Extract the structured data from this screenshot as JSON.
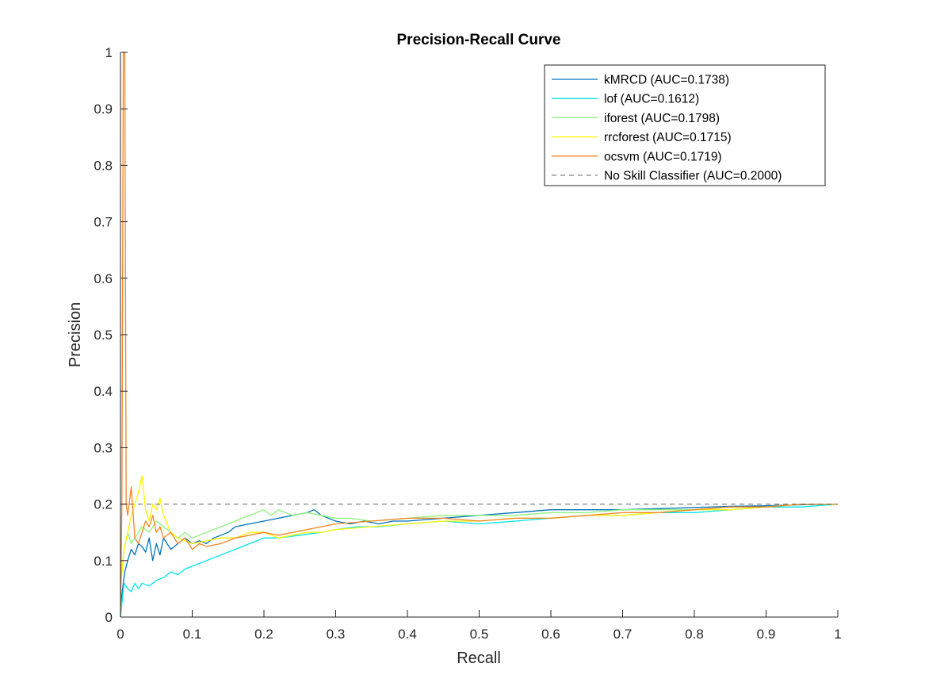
{
  "chart_data": {
    "type": "line",
    "title": "Precision-Recall Curve",
    "xlabel": "Recall",
    "ylabel": "Precision",
    "xlim": [
      0,
      1
    ],
    "ylim": [
      0,
      1
    ],
    "xticks": [
      "0",
      "0.1",
      "0.2",
      "0.3",
      "0.4",
      "0.5",
      "0.6",
      "0.7",
      "0.8",
      "0.9",
      "1"
    ],
    "yticks": [
      "0",
      "0.1",
      "0.2",
      "0.3",
      "0.4",
      "0.5",
      "0.6",
      "0.7",
      "0.8",
      "0.9",
      "1"
    ],
    "grid": false,
    "legend_position": "top-right",
    "series": [
      {
        "name": "kMRCD (AUC=0.1738)",
        "color": "#0072BD",
        "dash": false,
        "x": [
          0,
          0.003,
          0.006,
          0.01,
          0.015,
          0.02,
          0.025,
          0.03,
          0.035,
          0.04,
          0.045,
          0.05,
          0.055,
          0.06,
          0.07,
          0.08,
          0.09,
          0.1,
          0.11,
          0.12,
          0.13,
          0.14,
          0.15,
          0.16,
          0.18,
          0.2,
          0.22,
          0.24,
          0.26,
          0.27,
          0.28,
          0.3,
          0.32,
          0.34,
          0.36,
          0.38,
          0.4,
          0.45,
          0.5,
          0.55,
          0.6,
          0.65,
          0.7,
          0.75,
          0.8,
          0.85,
          0.9,
          0.95,
          1
        ],
        "y": [
          0.02,
          0.05,
          0.08,
          0.1,
          0.12,
          0.11,
          0.13,
          0.125,
          0.115,
          0.14,
          0.1,
          0.13,
          0.11,
          0.14,
          0.12,
          0.13,
          0.14,
          0.13,
          0.135,
          0.13,
          0.14,
          0.145,
          0.15,
          0.16,
          0.165,
          0.17,
          0.175,
          0.18,
          0.185,
          0.19,
          0.18,
          0.17,
          0.165,
          0.17,
          0.165,
          0.17,
          0.17,
          0.175,
          0.18,
          0.185,
          0.19,
          0.19,
          0.19,
          0.192,
          0.194,
          0.196,
          0.197,
          0.199,
          0.2
        ]
      },
      {
        "name": "lof (AUC=0.1612)",
        "color": "#00E5EE",
        "dash": false,
        "x": [
          0,
          0.005,
          0.01,
          0.015,
          0.02,
          0.025,
          0.03,
          0.04,
          0.05,
          0.06,
          0.07,
          0.08,
          0.09,
          0.1,
          0.12,
          0.14,
          0.16,
          0.18,
          0.2,
          0.22,
          0.25,
          0.28,
          0.3,
          0.33,
          0.36,
          0.4,
          0.45,
          0.5,
          0.55,
          0.6,
          0.65,
          0.7,
          0.75,
          0.8,
          0.85,
          0.9,
          0.95,
          1
        ],
        "y": [
          0.0,
          0.06,
          0.05,
          0.045,
          0.06,
          0.05,
          0.06,
          0.055,
          0.065,
          0.07,
          0.08,
          0.075,
          0.085,
          0.09,
          0.1,
          0.11,
          0.12,
          0.13,
          0.14,
          0.14,
          0.145,
          0.15,
          0.155,
          0.16,
          0.16,
          0.165,
          0.17,
          0.165,
          0.17,
          0.175,
          0.18,
          0.18,
          0.185,
          0.185,
          0.19,
          0.195,
          0.195,
          0.2
        ]
      },
      {
        "name": "iforest (AUC=0.1798)",
        "color": "#8CF47A",
        "dash": false,
        "x": [
          0,
          0.005,
          0.01,
          0.015,
          0.02,
          0.03,
          0.04,
          0.05,
          0.06,
          0.07,
          0.08,
          0.09,
          0.1,
          0.12,
          0.14,
          0.16,
          0.18,
          0.2,
          0.21,
          0.22,
          0.24,
          0.26,
          0.28,
          0.3,
          0.32,
          0.35,
          0.4,
          0.45,
          0.5,
          0.55,
          0.6,
          0.65,
          0.7,
          0.75,
          0.8,
          0.85,
          0.9,
          0.95,
          1
        ],
        "y": [
          0.05,
          0.12,
          0.15,
          0.13,
          0.14,
          0.16,
          0.15,
          0.17,
          0.16,
          0.15,
          0.14,
          0.15,
          0.14,
          0.15,
          0.16,
          0.17,
          0.18,
          0.19,
          0.18,
          0.19,
          0.18,
          0.185,
          0.18,
          0.175,
          0.175,
          0.17,
          0.175,
          0.18,
          0.18,
          0.18,
          0.185,
          0.185,
          0.19,
          0.19,
          0.19,
          0.195,
          0.195,
          0.2,
          0.2
        ]
      },
      {
        "name": "rrcforest (AUC=0.1715)",
        "color": "#FFF200",
        "dash": false,
        "x": [
          0,
          0.005,
          0.01,
          0.015,
          0.02,
          0.025,
          0.03,
          0.035,
          0.04,
          0.045,
          0.05,
          0.055,
          0.06,
          0.07,
          0.08,
          0.1,
          0.12,
          0.14,
          0.16,
          0.18,
          0.2,
          0.22,
          0.24,
          0.26,
          0.28,
          0.3,
          0.35,
          0.4,
          0.45,
          0.5,
          0.55,
          0.6,
          0.65,
          0.7,
          0.75,
          0.8,
          0.85,
          0.9,
          0.95,
          1
        ],
        "y": [
          0.05,
          0.12,
          0.15,
          0.18,
          0.2,
          0.22,
          0.25,
          0.19,
          0.17,
          0.2,
          0.19,
          0.21,
          0.18,
          0.15,
          0.14,
          0.13,
          0.135,
          0.14,
          0.14,
          0.15,
          0.15,
          0.14,
          0.145,
          0.15,
          0.15,
          0.155,
          0.16,
          0.165,
          0.17,
          0.17,
          0.175,
          0.175,
          0.18,
          0.18,
          0.185,
          0.19,
          0.19,
          0.195,
          0.2,
          0.2
        ]
      },
      {
        "name": "ocsvm (AUC=0.1719)",
        "color": "#F28522",
        "dash": false,
        "x": [
          0,
          0.002,
          0.004,
          0.006,
          0.008,
          0.01,
          0.015,
          0.02,
          0.025,
          0.03,
          0.035,
          0.04,
          0.045,
          0.05,
          0.055,
          0.06,
          0.07,
          0.08,
          0.09,
          0.1,
          0.11,
          0.12,
          0.14,
          0.16,
          0.18,
          0.2,
          0.22,
          0.24,
          0.26,
          0.28,
          0.3,
          0.35,
          0.4,
          0.45,
          0.5,
          0.55,
          0.6,
          0.65,
          0.7,
          0.75,
          0.8,
          0.85,
          0.9,
          0.95,
          1
        ],
        "y": [
          0.0,
          0.2,
          1.0,
          1.0,
          0.2,
          0.18,
          0.23,
          0.14,
          0.13,
          0.15,
          0.17,
          0.16,
          0.18,
          0.15,
          0.16,
          0.14,
          0.15,
          0.13,
          0.14,
          0.12,
          0.13,
          0.125,
          0.13,
          0.14,
          0.145,
          0.15,
          0.145,
          0.15,
          0.155,
          0.16,
          0.165,
          0.17,
          0.175,
          0.175,
          0.17,
          0.175,
          0.175,
          0.18,
          0.185,
          0.185,
          0.19,
          0.195,
          0.195,
          0.2,
          0.2
        ]
      },
      {
        "name": "No Skill Classifier (AUC=0.2000)",
        "color": "#666666",
        "dash": true,
        "x": [
          0,
          1
        ],
        "y": [
          0.2,
          0.2
        ]
      }
    ]
  }
}
